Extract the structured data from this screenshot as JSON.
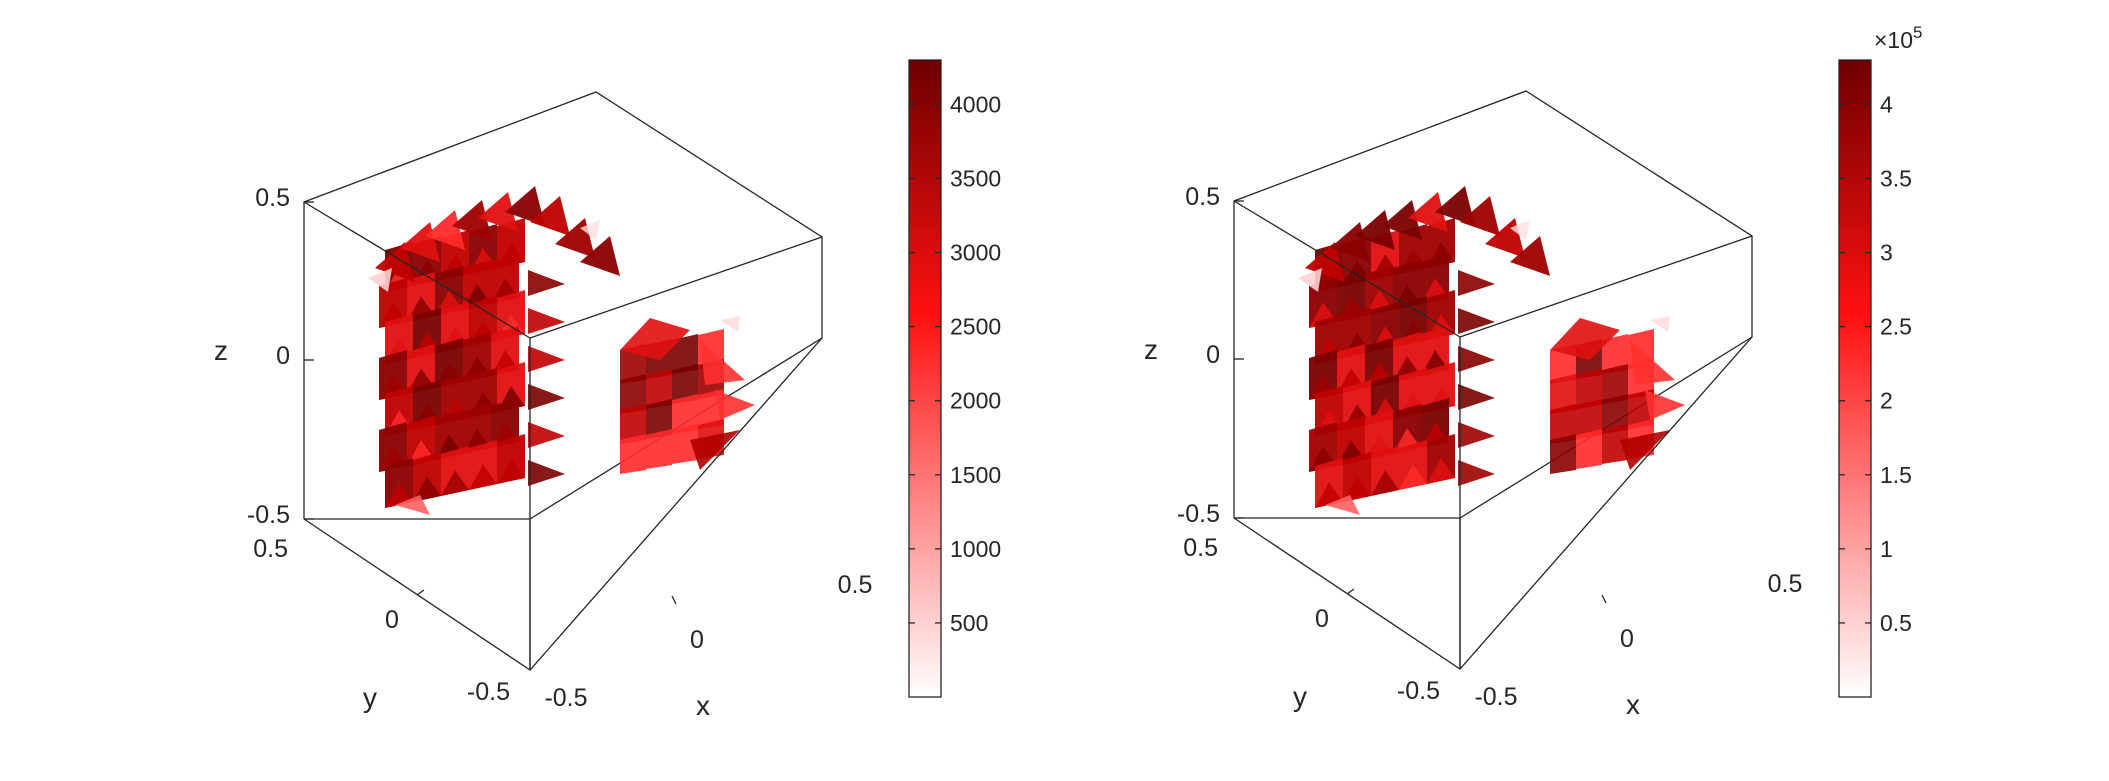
{
  "chart_data": [
    {
      "type": "volume-3d",
      "title": "",
      "xlabel": "x",
      "ylabel": "y",
      "zlabel": "z",
      "xlim": [
        -0.5,
        0.5
      ],
      "ylim": [
        -0.5,
        0.5
      ],
      "zlim": [
        -0.5,
        0.5
      ],
      "x_ticks": [
        "-0.5",
        "0",
        "0.5"
      ],
      "y_ticks": [
        "-0.5",
        "0",
        "0.5"
      ],
      "z_ticks": [
        "-0.5",
        "0",
        "0.5"
      ],
      "colorbar": {
        "range": [
          0,
          4300
        ],
        "ticks": [
          500,
          1000,
          1500,
          2000,
          2500,
          3000,
          3500,
          4000
        ],
        "tick_labels": [
          "500",
          "1000",
          "1500",
          "2000",
          "2500",
          "3000",
          "3500",
          "4000"
        ],
        "exponent": "",
        "colors": [
          "#ffffff",
          "#ff0000",
          "#6e0000"
        ]
      }
    },
    {
      "type": "volume-3d",
      "title": "",
      "xlabel": "x",
      "ylabel": "y",
      "zlabel": "z",
      "xlim": [
        -0.5,
        0.5
      ],
      "ylim": [
        -0.5,
        0.5
      ],
      "zlim": [
        -0.5,
        0.5
      ],
      "x_ticks": [
        "-0.5",
        "0",
        "0.5"
      ],
      "y_ticks": [
        "-0.5",
        "0",
        "0.5"
      ],
      "z_ticks": [
        "-0.5",
        "0",
        "0.5"
      ],
      "colorbar": {
        "range": [
          0,
          4.3
        ],
        "ticks": [
          0.5,
          1,
          1.5,
          2,
          2.5,
          3,
          3.5,
          4
        ],
        "tick_labels": [
          "0.5",
          "1",
          "1.5",
          "2",
          "2.5",
          "3",
          "3.5",
          "4"
        ],
        "exponent": "×10",
        "exponent_power": "5",
        "colors": [
          "#ffffff",
          "#ff0000",
          "#6e0000"
        ]
      }
    }
  ]
}
